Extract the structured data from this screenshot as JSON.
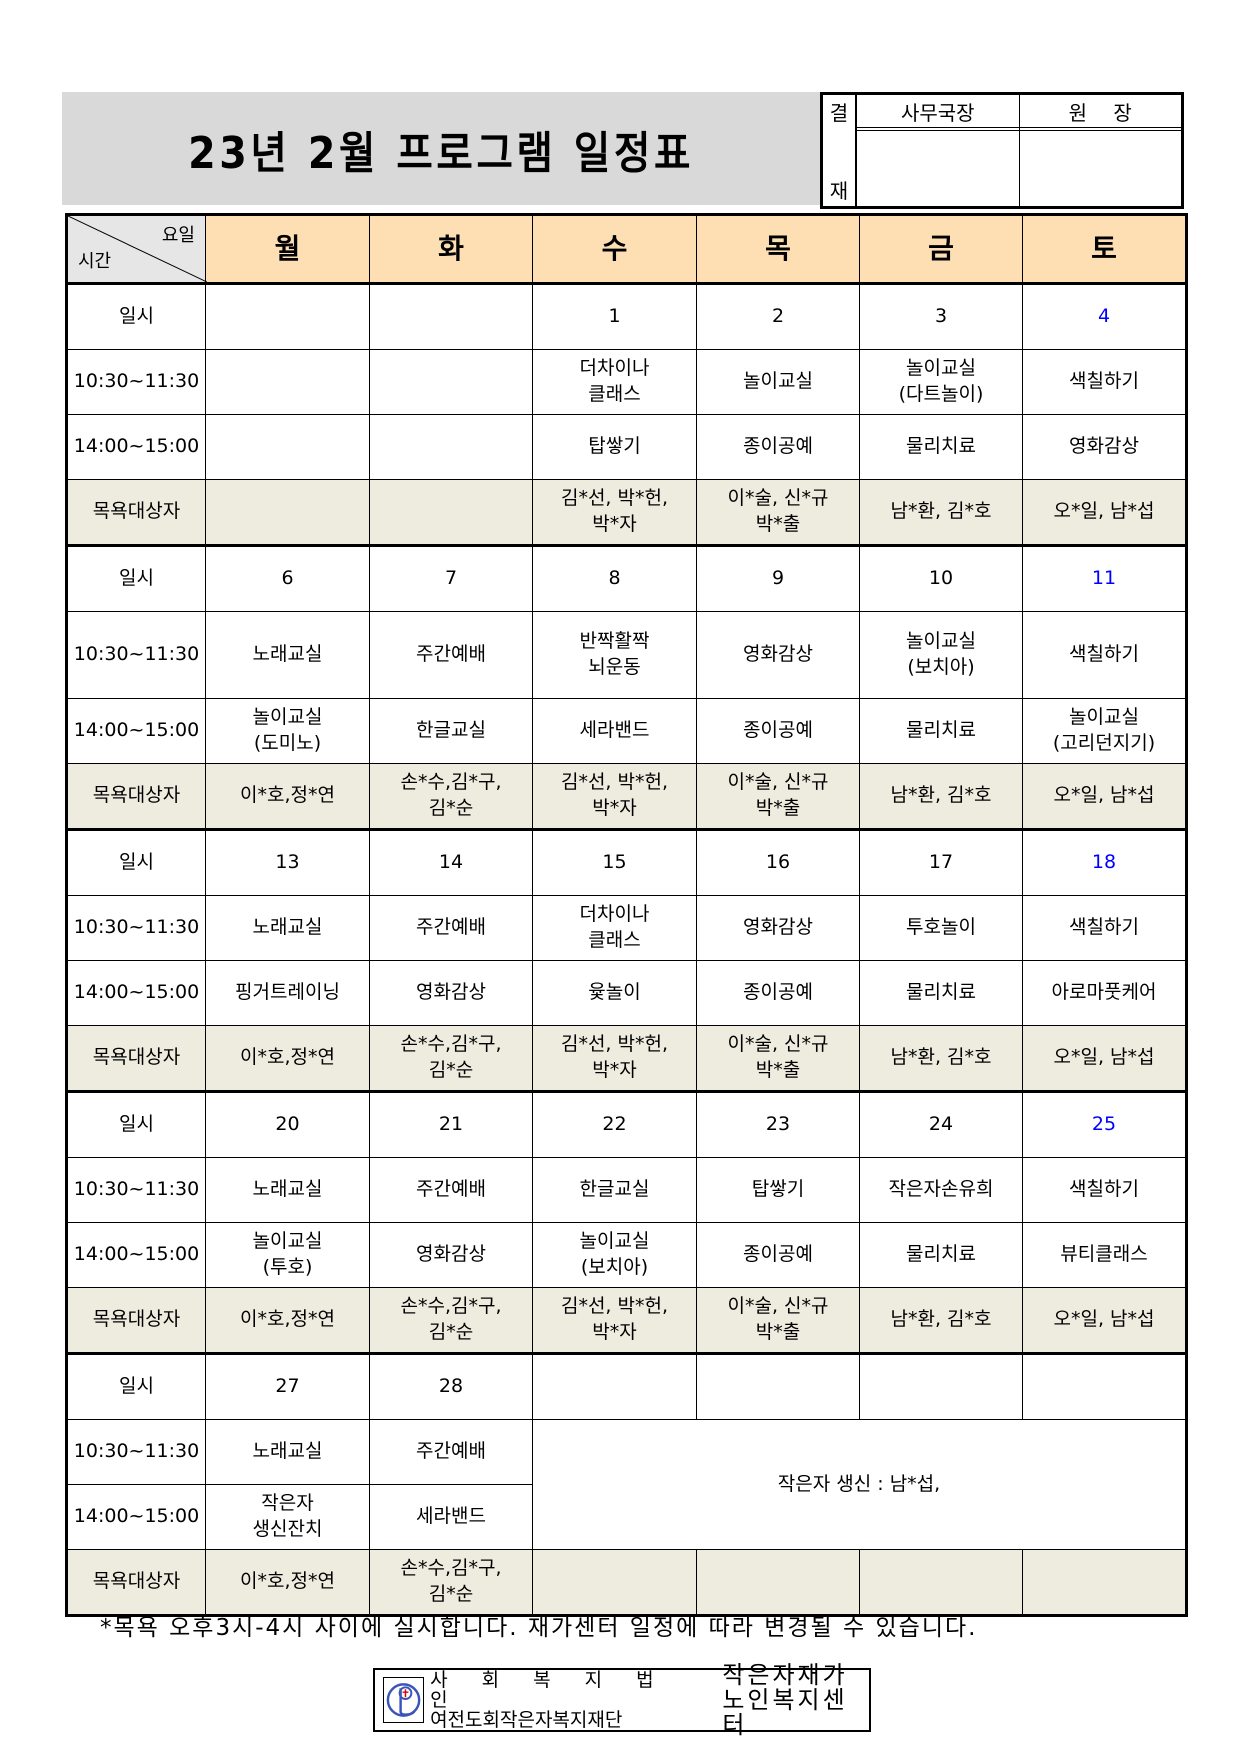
{
  "title": "23년 2월 프로그램 일정표",
  "approval": {
    "side_top": "결",
    "side_bottom": "재",
    "cols": [
      "사무국장",
      "원　 장"
    ]
  },
  "header": {
    "corner_day": "요일",
    "corner_time": "시간",
    "days": [
      "월",
      "화",
      "수",
      "목",
      "금",
      "토"
    ]
  },
  "labels": {
    "date": "일시",
    "am": "10:30~11:30",
    "pm": "14:00~15:00",
    "bath": "목욕대상자"
  },
  "colors": {
    "saturday": "#0000ff",
    "header_bg": "#fddfb3",
    "bath_bg": "#eeecdf",
    "title_bg": "#d9d9d9"
  },
  "weeks": [
    {
      "dates": [
        "",
        "",
        "1",
        "2",
        "3",
        "4"
      ],
      "am": [
        "",
        "",
        "더차이나\n클래스",
        "놀이교실",
        "놀이교실\n(다트놀이)",
        "색칠하기"
      ],
      "pm": [
        "",
        "",
        "탑쌓기",
        "종이공예",
        "물리치료",
        "영화감상"
      ],
      "bath": [
        "",
        "",
        "김*선, 박*헌,\n박*자",
        "이*술, 신*규\n박*출",
        "남*환, 김*호",
        "오*일, 남*섭"
      ]
    },
    {
      "dates": [
        "6",
        "7",
        "8",
        "9",
        "10",
        "11"
      ],
      "am": [
        "노래교실",
        "주간예배",
        "반짝활짝\n뇌운동",
        "영화감상",
        "놀이교실\n(보치아)",
        "색칠하기"
      ],
      "pm": [
        "놀이교실\n(도미노)",
        "한글교실",
        "세라밴드",
        "종이공예",
        "물리치료",
        "놀이교실\n(고리던지기)"
      ],
      "bath": [
        "이*호,정*연",
        "손*수,김*구,\n김*순",
        "김*선, 박*헌,\n박*자",
        "이*술, 신*규\n박*출",
        "남*환, 김*호",
        "오*일, 남*섭"
      ]
    },
    {
      "dates": [
        "13",
        "14",
        "15",
        "16",
        "17",
        "18"
      ],
      "am": [
        "노래교실",
        "주간예배",
        "더차이나\n클래스",
        "영화감상",
        "투호놀이",
        "색칠하기"
      ],
      "pm": [
        "핑거트레이닝",
        "영화감상",
        "윷놀이",
        "종이공예",
        "물리치료",
        "아로마풋케어"
      ],
      "bath": [
        "이*호,정*연",
        "손*수,김*구,\n김*순",
        "김*선, 박*헌,\n박*자",
        "이*술, 신*규\n박*출",
        "남*환, 김*호",
        "오*일, 남*섭"
      ]
    },
    {
      "dates": [
        "20",
        "21",
        "22",
        "23",
        "24",
        "25"
      ],
      "am": [
        "노래교실",
        "주간예배",
        "한글교실",
        "탑쌓기",
        "작은자손유희",
        "색칠하기"
      ],
      "pm": [
        "놀이교실\n(투호)",
        "영화감상",
        "놀이교실\n(보치아)",
        "종이공예",
        "물리치료",
        "뷰티클래스"
      ],
      "bath": [
        "이*호,정*연",
        "손*수,김*구,\n김*순",
        "김*선, 박*헌,\n박*자",
        "이*술, 신*규\n박*출",
        "남*환, 김*호",
        "오*일, 남*섭"
      ]
    },
    {
      "dates": [
        "27",
        "28",
        "",
        "",
        "",
        ""
      ],
      "am": [
        "노래교실",
        "주간예배"
      ],
      "pm": [
        "작은자\n생신잔치",
        "세라밴드"
      ],
      "merged_note": "작은자 생신 : 남*섭,",
      "bath": [
        "이*호,정*연",
        "손*수,김*구,\n김*순",
        "",
        "",
        "",
        ""
      ]
    }
  ],
  "note": "*목욕 오후3시-4시 사이에 실시합니다. 재가센터 일정에 따라 변경될 수 있습니다.",
  "footer": {
    "line1": "사 회 복 지 법 인",
    "line2": "여전도회작은자복지재단",
    "center1": "작은자재가",
    "center2": "노인복지센터"
  }
}
